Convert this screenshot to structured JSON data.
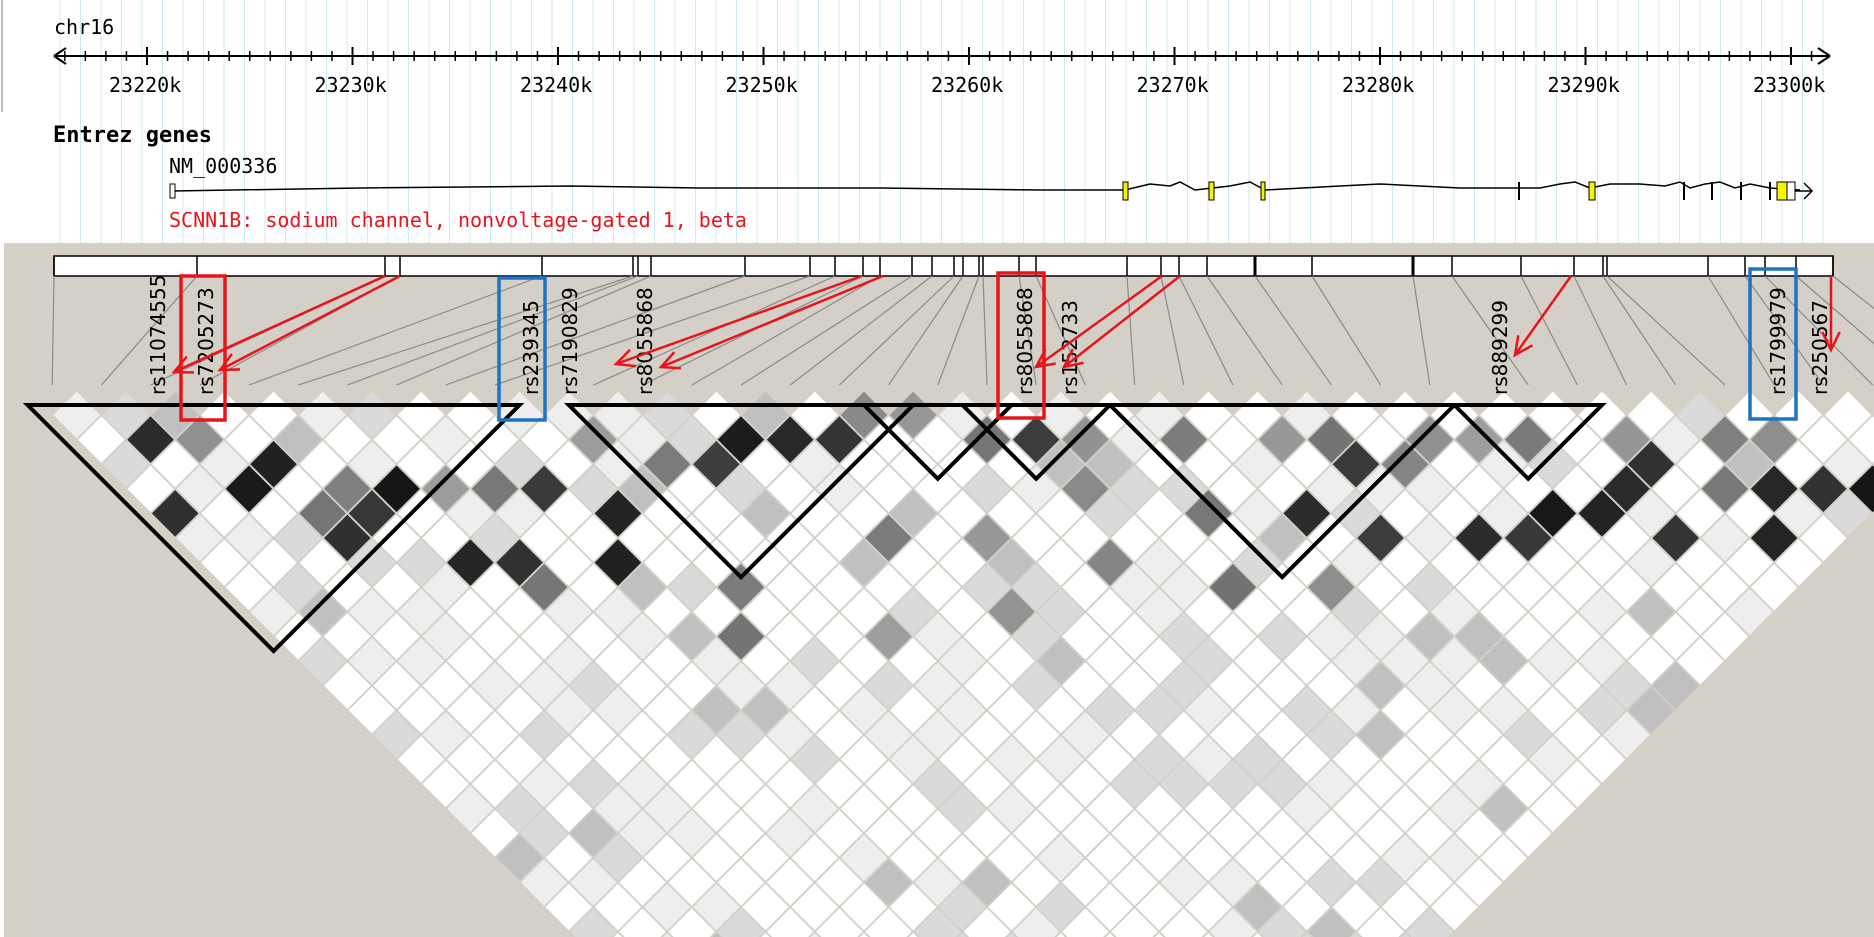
{
  "browser": {
    "chromosome": "chr16",
    "region_start_kb": 23215,
    "region_end_kb": 23302,
    "tick_labels": [
      "23220k",
      "23230k",
      "23240k",
      "23250k",
      "23260k",
      "23270k",
      "23280k",
      "23290k",
      "23300k"
    ],
    "track_title": "Entrez genes",
    "gene": {
      "accession": "NM_000336",
      "description": "SCNN1B: sodium channel, nonvoltage-gated 1, beta"
    }
  },
  "snps": [
    {
      "id": "rs11074555",
      "box": "none",
      "arrow": true
    },
    {
      "id": "rs7205273",
      "box": "red",
      "arrow": true
    },
    {
      "id": "rs239345",
      "box": "blue",
      "arrow": false
    },
    {
      "id": "rs7190829",
      "box": "none",
      "arrow": false
    },
    {
      "id": "rs8055868",
      "box": "none",
      "arrow": true
    },
    {
      "id": "rs8055868",
      "box": "red",
      "arrow": true
    },
    {
      "id": "rs152733",
      "box": "none",
      "arrow": true
    },
    {
      "id": "rs889299",
      "box": "none",
      "arrow": true
    },
    {
      "id": "rs1799979",
      "box": "blue",
      "arrow": false
    },
    {
      "id": "rs250567",
      "box": "none",
      "arrow": true
    }
  ],
  "ld_blocks_count": 6,
  "colors": {
    "annotation_red": "#e8141b",
    "annotation_blue": "#1f73c2",
    "panel_background": "#d4d0c8",
    "gene_text": "#e8141b",
    "exon_fill": "#f5f500",
    "ld_strong": "#000000",
    "ld_weak": "#ffffff"
  },
  "icons": {
    "arrow": "red-arrow-icon"
  }
}
